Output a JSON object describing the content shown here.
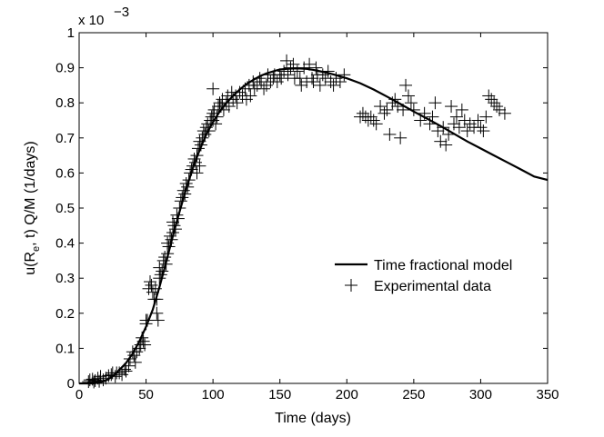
{
  "chart_data": {
    "type": "line",
    "title": "",
    "xlabel": "Time (days)",
    "ylabel_parts": [
      "u(R",
      "e",
      ", t) Q/M (1/days)"
    ],
    "y_scale_base": "x 10",
    "y_scale_exp": "−3",
    "xlim": [
      0,
      350
    ],
    "ylim": [
      0,
      1
    ],
    "xticks": [
      0,
      50,
      100,
      150,
      200,
      250,
      300,
      350
    ],
    "yticks": [
      0,
      0.1,
      0.2,
      0.3,
      0.4,
      0.5,
      0.6,
      0.7,
      0.8,
      0.9,
      1
    ],
    "xtick_labels": [
      "0",
      "50",
      "100",
      "150",
      "200",
      "250",
      "300",
      "350"
    ],
    "ytick_labels": [
      "0",
      "0.1",
      "0.2",
      "0.3",
      "0.4",
      "0.5",
      "0.6",
      "0.7",
      "0.8",
      "0.9",
      "1"
    ],
    "grid": false,
    "legend_position": "right-center",
    "series": [
      {
        "name": "Time fractional model",
        "kind": "line",
        "color": "#000000",
        "x": [
          0,
          10,
          15,
          20,
          25,
          30,
          35,
          40,
          45,
          50,
          55,
          60,
          65,
          70,
          75,
          80,
          85,
          90,
          95,
          100,
          105,
          110,
          115,
          120,
          125,
          130,
          135,
          140,
          145,
          150,
          155,
          160,
          165,
          170,
          175,
          180,
          185,
          190,
          200,
          210,
          220,
          230,
          240,
          250,
          260,
          270,
          280,
          290,
          300,
          310,
          320,
          330,
          340,
          350
        ],
        "y": [
          0,
          0.0,
          0.002,
          0.008,
          0.02,
          0.038,
          0.058,
          0.085,
          0.12,
          0.162,
          0.21,
          0.275,
          0.345,
          0.42,
          0.49,
          0.555,
          0.615,
          0.665,
          0.71,
          0.745,
          0.775,
          0.8,
          0.82,
          0.838,
          0.853,
          0.865,
          0.876,
          0.884,
          0.89,
          0.895,
          0.897,
          0.898,
          0.898,
          0.897,
          0.894,
          0.89,
          0.886,
          0.881,
          0.87,
          0.856,
          0.838,
          0.818,
          0.797,
          0.775,
          0.755,
          0.734,
          0.712,
          0.69,
          0.67,
          0.65,
          0.63,
          0.61,
          0.59,
          0.58
        ]
      },
      {
        "name": "Experimental data",
        "kind": "scatter",
        "marker": "+",
        "color": "#000000",
        "points": [
          [
            7,
            0.005
          ],
          [
            8,
            0.01
          ],
          [
            10,
            0.012
          ],
          [
            11,
            0.004
          ],
          [
            12,
            0.008
          ],
          [
            14,
            0.015
          ],
          [
            15,
            0.006
          ],
          [
            16,
            0.02
          ],
          [
            18,
            0.01
          ],
          [
            20,
            0.015
          ],
          [
            22,
            0.022
          ],
          [
            24,
            0.025
          ],
          [
            25,
            0.03
          ],
          [
            27,
            0.02
          ],
          [
            28,
            0.03
          ],
          [
            30,
            0.03
          ],
          [
            32,
            0.025
          ],
          [
            34,
            0.04
          ],
          [
            35,
            0.035
          ],
          [
            37,
            0.05
          ],
          [
            38,
            0.07
          ],
          [
            40,
            0.09
          ],
          [
            41,
            0.08
          ],
          [
            42,
            0.06
          ],
          [
            43,
            0.09
          ],
          [
            45,
            0.1
          ],
          [
            46,
            0.11
          ],
          [
            47,
            0.13
          ],
          [
            48,
            0.12
          ],
          [
            49,
            0.11
          ],
          [
            50,
            0.17
          ],
          [
            50,
            0.18
          ],
          [
            51,
            0.18
          ],
          [
            52,
            0.27
          ],
          [
            53,
            0.29
          ],
          [
            54,
            0.28
          ],
          [
            55,
            0.26
          ],
          [
            56,
            0.24
          ],
          [
            57,
            0.27
          ],
          [
            58,
            0.24
          ],
          [
            58,
            0.2
          ],
          [
            59,
            0.18
          ],
          [
            60,
            0.3
          ],
          [
            60,
            0.33
          ],
          [
            61,
            0.31
          ],
          [
            62,
            0.32
          ],
          [
            63,
            0.35
          ],
          [
            64,
            0.36
          ],
          [
            65,
            0.34
          ],
          [
            66,
            0.37
          ],
          [
            66,
            0.4
          ],
          [
            67,
            0.39
          ],
          [
            68,
            0.42
          ],
          [
            69,
            0.41
          ],
          [
            70,
            0.43
          ],
          [
            70,
            0.46
          ],
          [
            71,
            0.45
          ],
          [
            72,
            0.44
          ],
          [
            73,
            0.48
          ],
          [
            74,
            0.47
          ],
          [
            75,
            0.5
          ],
          [
            76,
            0.52
          ],
          [
            77,
            0.53
          ],
          [
            78,
            0.55
          ],
          [
            79,
            0.54
          ],
          [
            80,
            0.57
          ],
          [
            81,
            0.56
          ],
          [
            82,
            0.58
          ],
          [
            83,
            0.6
          ],
          [
            84,
            0.61
          ],
          [
            85,
            0.62
          ],
          [
            86,
            0.64
          ],
          [
            87,
            0.63
          ],
          [
            88,
            0.6
          ],
          [
            88,
            0.65
          ],
          [
            89,
            0.67
          ],
          [
            90,
            0.62
          ],
          [
            90,
            0.69
          ],
          [
            91,
            0.68
          ],
          [
            92,
            0.7
          ],
          [
            93,
            0.72
          ],
          [
            94,
            0.71
          ],
          [
            95,
            0.73
          ],
          [
            96,
            0.74
          ],
          [
            97,
            0.72
          ],
          [
            98,
            0.75
          ],
          [
            99,
            0.76
          ],
          [
            100,
            0.77
          ],
          [
            100,
            0.75
          ],
          [
            101,
            0.78
          ],
          [
            102,
            0.74
          ],
          [
            103,
            0.76
          ],
          [
            104,
            0.79
          ],
          [
            105,
            0.8
          ],
          [
            106,
            0.79
          ],
          [
            107,
            0.81
          ],
          [
            108,
            0.78
          ],
          [
            110,
            0.8
          ],
          [
            111,
            0.82
          ],
          [
            112,
            0.79
          ],
          [
            114,
            0.83
          ],
          [
            115,
            0.81
          ],
          [
            117,
            0.82
          ],
          [
            118,
            0.8
          ],
          [
            120,
            0.83
          ],
          [
            122,
            0.82
          ],
          [
            124,
            0.84
          ],
          [
            125,
            0.81
          ],
          [
            127,
            0.85
          ],
          [
            128,
            0.82
          ],
          [
            130,
            0.86
          ],
          [
            131,
            0.84
          ],
          [
            133,
            0.85
          ],
          [
            135,
            0.87
          ],
          [
            136,
            0.86
          ],
          [
            138,
            0.84
          ],
          [
            140,
            0.85
          ],
          [
            141,
            0.88
          ],
          [
            143,
            0.86
          ],
          [
            145,
            0.87
          ],
          [
            146,
            0.88
          ],
          [
            148,
            0.86
          ],
          [
            150,
            0.88
          ],
          [
            151,
            0.87
          ],
          [
            153,
            0.89
          ],
          [
            155,
            0.92
          ],
          [
            156,
            0.88
          ],
          [
            158,
            0.9
          ],
          [
            160,
            0.91
          ],
          [
            161,
            0.87
          ],
          [
            163,
            0.89
          ],
          [
            165,
            0.87
          ],
          [
            166,
            0.85
          ],
          [
            168,
            0.9
          ],
          [
            170,
            0.86
          ],
          [
            172,
            0.91
          ],
          [
            174,
            0.87
          ],
          [
            175,
            0.86
          ],
          [
            177,
            0.9
          ],
          [
            178,
            0.88
          ],
          [
            180,
            0.85
          ],
          [
            182,
            0.88
          ],
          [
            184,
            0.87
          ],
          [
            186,
            0.89
          ],
          [
            188,
            0.86
          ],
          [
            190,
            0.85
          ],
          [
            192,
            0.87
          ],
          [
            195,
            0.86
          ],
          [
            198,
            0.88
          ],
          [
            100,
            0.84
          ],
          [
            210,
            0.76
          ],
          [
            212,
            0.77
          ],
          [
            214,
            0.76
          ],
          [
            216,
            0.75
          ],
          [
            218,
            0.76
          ],
          [
            220,
            0.75
          ],
          [
            222,
            0.74
          ],
          [
            225,
            0.79
          ],
          [
            228,
            0.77
          ],
          [
            230,
            0.78
          ],
          [
            232,
            0.71
          ],
          [
            234,
            0.8
          ],
          [
            236,
            0.81
          ],
          [
            238,
            0.79
          ],
          [
            240,
            0.7
          ],
          [
            242,
            0.78
          ],
          [
            244,
            0.85
          ],
          [
            246,
            0.82
          ],
          [
            248,
            0.8
          ],
          [
            250,
            0.78
          ],
          [
            255,
            0.75
          ],
          [
            258,
            0.77
          ],
          [
            262,
            0.74
          ],
          [
            264,
            0.76
          ],
          [
            266,
            0.8
          ],
          [
            268,
            0.72
          ],
          [
            270,
            0.69
          ],
          [
            272,
            0.73
          ],
          [
            274,
            0.68
          ],
          [
            276,
            0.71
          ],
          [
            278,
            0.79
          ],
          [
            280,
            0.74
          ],
          [
            282,
            0.76
          ],
          [
            284,
            0.73
          ],
          [
            286,
            0.78
          ],
          [
            288,
            0.75
          ],
          [
            290,
            0.72
          ],
          [
            292,
            0.74
          ],
          [
            295,
            0.73
          ],
          [
            298,
            0.75
          ],
          [
            300,
            0.73
          ],
          [
            302,
            0.72
          ],
          [
            304,
            0.76
          ],
          [
            306,
            0.82
          ],
          [
            308,
            0.81
          ],
          [
            310,
            0.8
          ],
          [
            312,
            0.79
          ],
          [
            314,
            0.78
          ],
          [
            318,
            0.77
          ]
        ]
      }
    ]
  }
}
